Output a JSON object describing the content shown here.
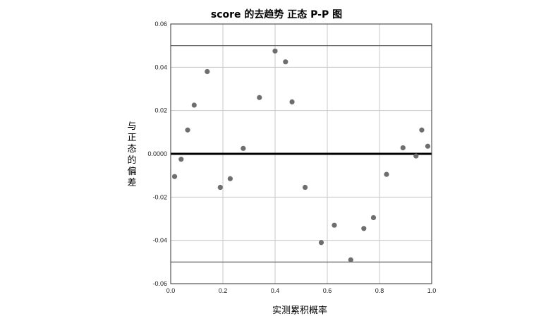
{
  "chart_data": {
    "type": "scatter",
    "title": "score 的去趋势 正态 P-P 图",
    "xlabel": "实测累积概率",
    "ylabel": "与正态的偏差",
    "xlim": [
      0.0,
      1.0
    ],
    "ylim": [
      -0.06,
      0.06
    ],
    "x_ticks": [
      {
        "value": 0.0,
        "label": "0.0"
      },
      {
        "value": 0.2,
        "label": "0.2"
      },
      {
        "value": 0.4,
        "label": "0.4"
      },
      {
        "value": 0.6,
        "label": "0.6"
      },
      {
        "value": 0.8,
        "label": "0.8"
      },
      {
        "value": 1.0,
        "label": "1.0"
      }
    ],
    "y_ticks": [
      {
        "value": 0.06,
        "label": "0.06"
      },
      {
        "value": 0.04,
        "label": "0.04"
      },
      {
        "value": 0.02,
        "label": "0.02"
      },
      {
        "value": 0.0,
        "label": "0.0000"
      },
      {
        "value": -0.02,
        "label": "-0.02"
      },
      {
        "value": -0.04,
        "label": "-0.04"
      },
      {
        "value": -0.06,
        "label": "-0.06"
      }
    ],
    "reference_lines_y": [
      0.05,
      0.0,
      -0.05
    ],
    "grid": true,
    "colors": {
      "points": "#6e6e6e",
      "grid": "#c8c8c8",
      "zero_line": "#000000",
      "bound_lines": "#555555"
    },
    "points": [
      {
        "x": 0.015,
        "y": -0.0105
      },
      {
        "x": 0.04,
        "y": -0.0025
      },
      {
        "x": 0.065,
        "y": 0.011
      },
      {
        "x": 0.09,
        "y": 0.0225
      },
      {
        "x": 0.14,
        "y": 0.038
      },
      {
        "x": 0.19,
        "y": -0.0155
      },
      {
        "x": 0.228,
        "y": -0.0115
      },
      {
        "x": 0.278,
        "y": 0.0025
      },
      {
        "x": 0.34,
        "y": 0.026
      },
      {
        "x": 0.4,
        "y": 0.0475
      },
      {
        "x": 0.44,
        "y": 0.0425
      },
      {
        "x": 0.465,
        "y": 0.024
      },
      {
        "x": 0.515,
        "y": -0.0155
      },
      {
        "x": 0.577,
        "y": -0.041
      },
      {
        "x": 0.627,
        "y": -0.033
      },
      {
        "x": 0.69,
        "y": -0.049
      },
      {
        "x": 0.74,
        "y": -0.0345
      },
      {
        "x": 0.777,
        "y": -0.0295
      },
      {
        "x": 0.827,
        "y": -0.0095
      },
      {
        "x": 0.89,
        "y": 0.0028
      },
      {
        "x": 0.94,
        "y": -0.001
      },
      {
        "x": 0.962,
        "y": 0.011
      },
      {
        "x": 0.985,
        "y": 0.0035
      }
    ]
  }
}
